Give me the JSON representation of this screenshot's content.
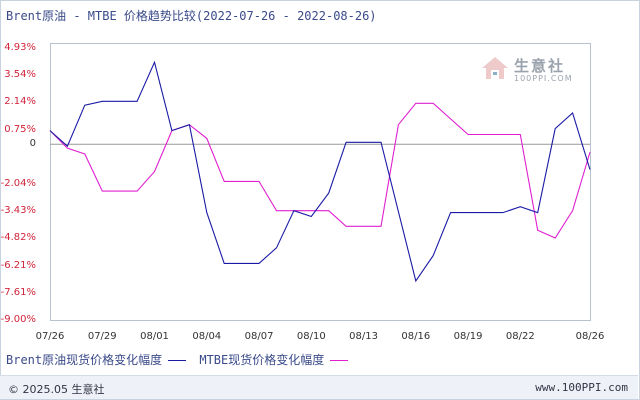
{
  "title": "Brent原油 - MTBE 价格趋势比较(2022-07-26 - 2022-08-26)",
  "watermark": {
    "name": "生意社",
    "url": "100PPI.COM"
  },
  "footer": {
    "copyright": "© 2025.05 生意社",
    "site": "www.100PPI.com"
  },
  "colors": {
    "series1": "#1a1aa6",
    "series2": "#e020d0",
    "zero_line": "#999999",
    "tick_text": "#d0243a"
  },
  "chart_data": {
    "type": "line",
    "title": "Brent原油 - MTBE 价格趋势比较(2022-07-26 - 2022-08-26)",
    "ytick_labels": [
      "4.93%",
      "3.54%",
      "2.14%",
      "0.75%",
      "0",
      "-2.04%",
      "-3.43%",
      "-4.82%",
      "-6.21%",
      "-7.61%",
      "-9.00%"
    ],
    "ytick_values": [
      4.93,
      3.54,
      2.14,
      0.75,
      0,
      -2.04,
      -3.43,
      -4.82,
      -6.21,
      -7.61,
      -9.0
    ],
    "ylim": [
      -9.0,
      4.93
    ],
    "xtick_labels": [
      "07/26",
      "07/29",
      "08/01",
      "08/04",
      "08/07",
      "08/10",
      "08/13",
      "08/16",
      "08/19",
      "08/22",
      "08/26"
    ],
    "xtick_days": [
      0,
      3,
      6,
      9,
      12,
      15,
      18,
      21,
      24,
      27,
      31
    ],
    "xlim": [
      0,
      31
    ],
    "grid": false,
    "legend_position": "bottom",
    "series": [
      {
        "name": "Brent原油现货价格变化幅度",
        "color": "#1a1aa6",
        "x": [
          0,
          1,
          2,
          3,
          5,
          6,
          7,
          8,
          9,
          10,
          11,
          12,
          13,
          14,
          15,
          16,
          17,
          18,
          19,
          21,
          22,
          23,
          25,
          26,
          27,
          28,
          29,
          30,
          31
        ],
        "y": [
          0.7,
          -0.1,
          2.0,
          2.2,
          2.2,
          4.2,
          0.7,
          1.0,
          -3.5,
          -6.1,
          -6.1,
          -6.1,
          -5.3,
          -3.4,
          -3.7,
          -2.5,
          0.1,
          0.1,
          0.1,
          -7.0,
          -5.7,
          -3.5,
          -3.5,
          -3.5,
          -3.2,
          -3.5,
          0.8,
          1.6,
          -1.3
        ]
      },
      {
        "name": "MTBE现货价格变化幅度",
        "color": "#e020d0",
        "x": [
          0,
          1,
          2,
          3,
          4,
          5,
          6,
          7,
          8,
          9,
          10,
          11,
          12,
          13,
          14,
          15,
          16,
          17,
          18,
          19,
          20,
          21,
          22,
          23,
          24,
          25,
          26,
          27,
          28,
          29,
          30,
          31
        ],
        "y": [
          0.7,
          -0.2,
          -0.5,
          -2.4,
          -2.4,
          -2.4,
          -1.4,
          0.7,
          1.0,
          0.3,
          -1.9,
          -1.9,
          -1.9,
          -3.4,
          -3.4,
          -3.4,
          -3.4,
          -4.2,
          -4.2,
          -4.2,
          1.0,
          2.1,
          2.1,
          1.3,
          0.5,
          0.5,
          0.5,
          0.5,
          -4.4,
          -4.8,
          -3.4,
          -0.4
        ]
      }
    ]
  }
}
